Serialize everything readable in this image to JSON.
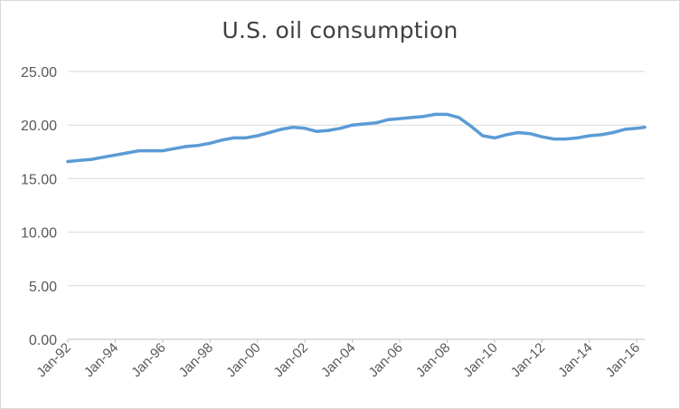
{
  "chart_data": {
    "type": "line",
    "title": "U.S. oil consumption",
    "xlabel": "",
    "ylabel": "",
    "ylim": [
      0,
      25
    ],
    "yticks": [
      "0.00",
      "5.00",
      "10.00",
      "15.00",
      "20.00",
      "25.00"
    ],
    "xticks": [
      "Jan-92",
      "Jan-94",
      "Jan-96",
      "Jan-98",
      "Jan-00",
      "Jan-02",
      "Jan-04",
      "Jan-06",
      "Jan-08",
      "Jan-10",
      "Jan-12",
      "Jan-14",
      "Jan-16"
    ],
    "grid": "horizontal",
    "legend": "none",
    "series": [
      {
        "color": "#5b9bd5",
        "x": [
          "1992-01",
          "1992-07",
          "1993-01",
          "1993-07",
          "1994-01",
          "1994-07",
          "1995-01",
          "1995-07",
          "1996-01",
          "1996-07",
          "1997-01",
          "1997-07",
          "1998-01",
          "1998-07",
          "1999-01",
          "1999-07",
          "2000-01",
          "2000-07",
          "2001-01",
          "2001-07",
          "2002-01",
          "2002-07",
          "2003-01",
          "2003-07",
          "2004-01",
          "2004-07",
          "2005-01",
          "2005-07",
          "2006-01",
          "2006-07",
          "2007-01",
          "2007-07",
          "2008-01",
          "2008-07",
          "2009-01",
          "2009-07",
          "2010-01",
          "2010-07",
          "2011-01",
          "2011-07",
          "2012-01",
          "2012-07",
          "2013-01",
          "2013-07",
          "2014-01",
          "2014-07",
          "2015-01",
          "2015-07",
          "2016-01",
          "2016-05"
        ],
        "values": [
          16.6,
          16.7,
          16.8,
          17.0,
          17.2,
          17.4,
          17.6,
          17.6,
          17.6,
          17.8,
          18.0,
          18.1,
          18.3,
          18.6,
          18.8,
          18.8,
          19.0,
          19.3,
          19.6,
          19.8,
          19.7,
          19.4,
          19.5,
          19.7,
          20.0,
          20.1,
          20.2,
          20.5,
          20.6,
          20.7,
          20.8,
          21.0,
          21.0,
          20.7,
          19.9,
          19.0,
          18.8,
          19.1,
          19.3,
          19.2,
          18.9,
          18.7,
          18.7,
          18.8,
          19.0,
          19.1,
          19.3,
          19.6,
          19.7,
          19.8
        ]
      }
    ]
  }
}
